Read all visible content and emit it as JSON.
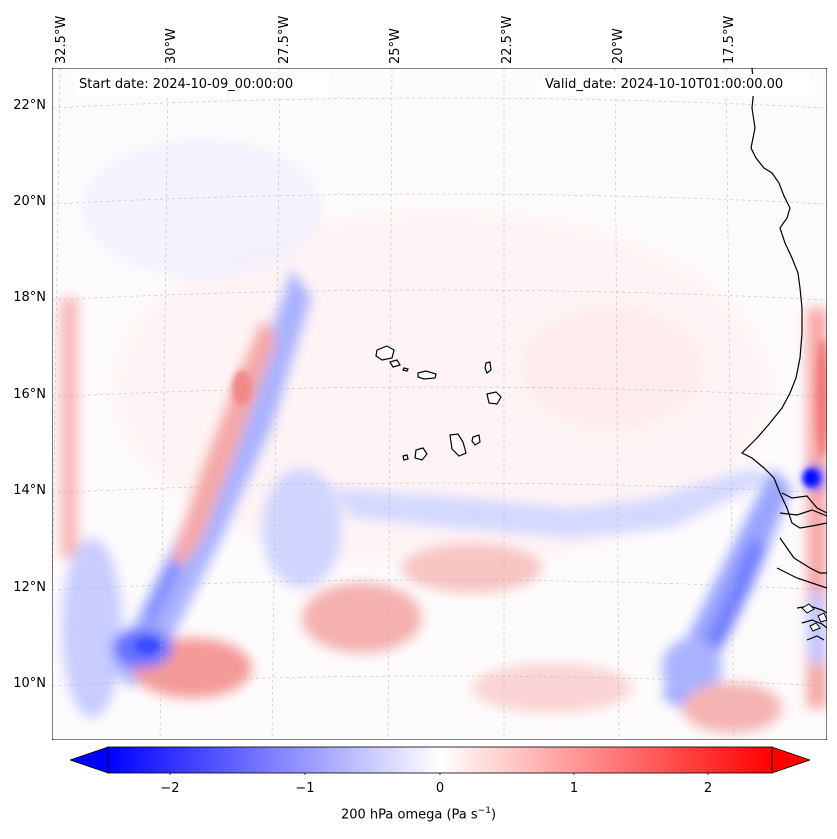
{
  "header": {
    "start_date": "Start date: 2024-10-09_00:00:00",
    "valid_date": "Valid_date: 2024-10-10T01:00:00.00"
  },
  "axes": {
    "longitude_labels": [
      "32.5°W",
      "30°W",
      "27.5°W",
      "25°W",
      "22.5°W",
      "20°W",
      "17.5°W"
    ],
    "latitude_labels": [
      "22°N",
      "20°N",
      "18°N",
      "16°N",
      "14°N",
      "12°N",
      "10°N"
    ]
  },
  "colorbar": {
    "label": "200 hPa omega (Pa s",
    "label_superscript": "−1",
    "label_suffix": ")",
    "ticks": [
      "−2",
      "−1",
      "0",
      "1",
      "2"
    ],
    "min": -2.75,
    "max": 2.75,
    "colors": {
      "negative": "#0000ff",
      "zero": "#ffffff",
      "positive": "#ff0000"
    }
  },
  "map": {
    "field": "200 hPa omega",
    "colors": {
      "coast": "#000000",
      "grid": "#b0b0b0"
    }
  }
}
